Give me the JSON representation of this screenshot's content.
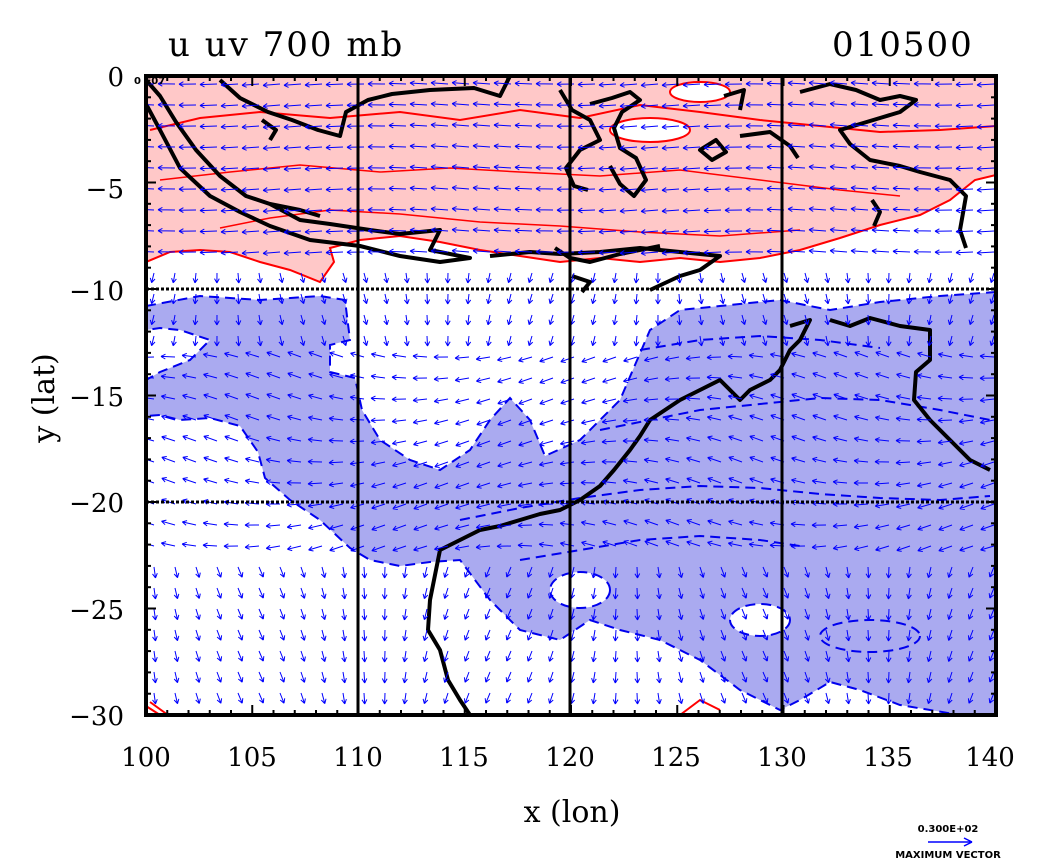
{
  "title": "u uv 700 mb",
  "time_label": "010500",
  "corner_label": "0 E07",
  "xlabel": "x (lon)",
  "ylabel": "y (lat)",
  "x_ticks": [
    "100",
    "105",
    "110",
    "115",
    "120",
    "125",
    "130",
    "135",
    "140"
  ],
  "y_ticks": [
    "0",
    "−5",
    "−10",
    "−15",
    "−20",
    "−25",
    "−30"
  ],
  "reference_vector": {
    "value": "0.300E+02",
    "label": "MAXIMUM VECTOR"
  },
  "map": {
    "lon_range": [
      100,
      140
    ],
    "lat_range": [
      -30,
      0
    ],
    "grid_lines_lon": [
      110,
      120,
      130
    ],
    "grid_lines_lat": [
      -10,
      -20
    ],
    "positive_fill": "#ffc8c8",
    "positive_contour": "#ff0000",
    "negative_fill": "#aaaaf0",
    "negative_contour": "#0000ee",
    "coastline": "#000000",
    "vector_color": "#0000ff"
  }
}
